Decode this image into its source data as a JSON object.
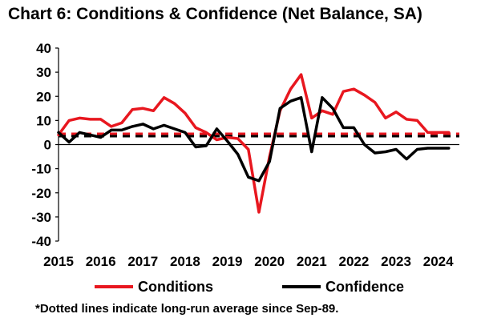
{
  "chart_data": {
    "type": "line",
    "title": "Chart 6: Conditions & Confidence (Net Balance, SA)",
    "xlabel": "",
    "ylabel": "",
    "ylim": [
      -40,
      40
    ],
    "yticks": [
      40,
      30,
      20,
      10,
      0,
      -10,
      -20,
      -30,
      -40
    ],
    "xlim": [
      2015.0,
      2024.5
    ],
    "xtick_labels": [
      "2015",
      "2016",
      "2017",
      "2018",
      "2019",
      "2020",
      "2021",
      "2022",
      "2023",
      "2024"
    ],
    "grid": false,
    "legend_position": "bottom",
    "series": [
      {
        "name": "Conditions",
        "color": "#e8171f",
        "x": [
          2015.0,
          2015.25,
          2015.5,
          2015.75,
          2016.0,
          2016.25,
          2016.5,
          2016.75,
          2017.0,
          2017.25,
          2017.5,
          2017.75,
          2018.0,
          2018.25,
          2018.5,
          2018.75,
          2019.0,
          2019.25,
          2019.5,
          2019.75,
          2020.0,
          2020.25,
          2020.5,
          2020.75,
          2021.0,
          2021.25,
          2021.5,
          2021.75,
          2022.0,
          2022.25,
          2022.5,
          2022.75,
          2023.0,
          2023.25,
          2023.5,
          2023.75,
          2024.0,
          2024.25
        ],
        "values": [
          4,
          10,
          11,
          10.5,
          10.5,
          7.5,
          9,
          14.5,
          15,
          14,
          19.5,
          17,
          13,
          7,
          5,
          2,
          3,
          2.5,
          -2,
          -28,
          -5,
          14,
          23,
          29,
          11,
          14,
          12.5,
          22,
          23,
          20.5,
          17.5,
          11,
          13.5,
          10.5,
          10,
          5,
          5,
          5
        ],
        "avg": 4.5
      },
      {
        "name": "Confidence",
        "color": "#000000",
        "x": [
          2015.0,
          2015.25,
          2015.5,
          2015.75,
          2016.0,
          2016.25,
          2016.5,
          2016.75,
          2017.0,
          2017.25,
          2017.5,
          2017.75,
          2018.0,
          2018.25,
          2018.5,
          2018.75,
          2019.0,
          2019.25,
          2019.5,
          2019.75,
          2020.0,
          2020.25,
          2020.5,
          2020.75,
          2021.0,
          2021.25,
          2021.5,
          2021.75,
          2022.0,
          2022.25,
          2022.5,
          2022.75,
          2023.0,
          2023.25,
          2023.5,
          2023.75,
          2024.0,
          2024.25
        ],
        "values": [
          5,
          1,
          5,
          4,
          3,
          6,
          6,
          7.5,
          8.5,
          6.5,
          8,
          6.5,
          5,
          -1,
          -0.5,
          6.5,
          1.5,
          -4,
          -13.5,
          -15,
          -7,
          15,
          18,
          19.5,
          -3,
          19.5,
          15,
          7,
          7,
          0,
          -3.5,
          -3,
          -2,
          -6,
          -2,
          -1.5,
          -1.5,
          -1.5
        ],
        "avg": 3.5
      }
    ],
    "footnote": "*Dotted lines indicate long-run average since Sep-89."
  }
}
